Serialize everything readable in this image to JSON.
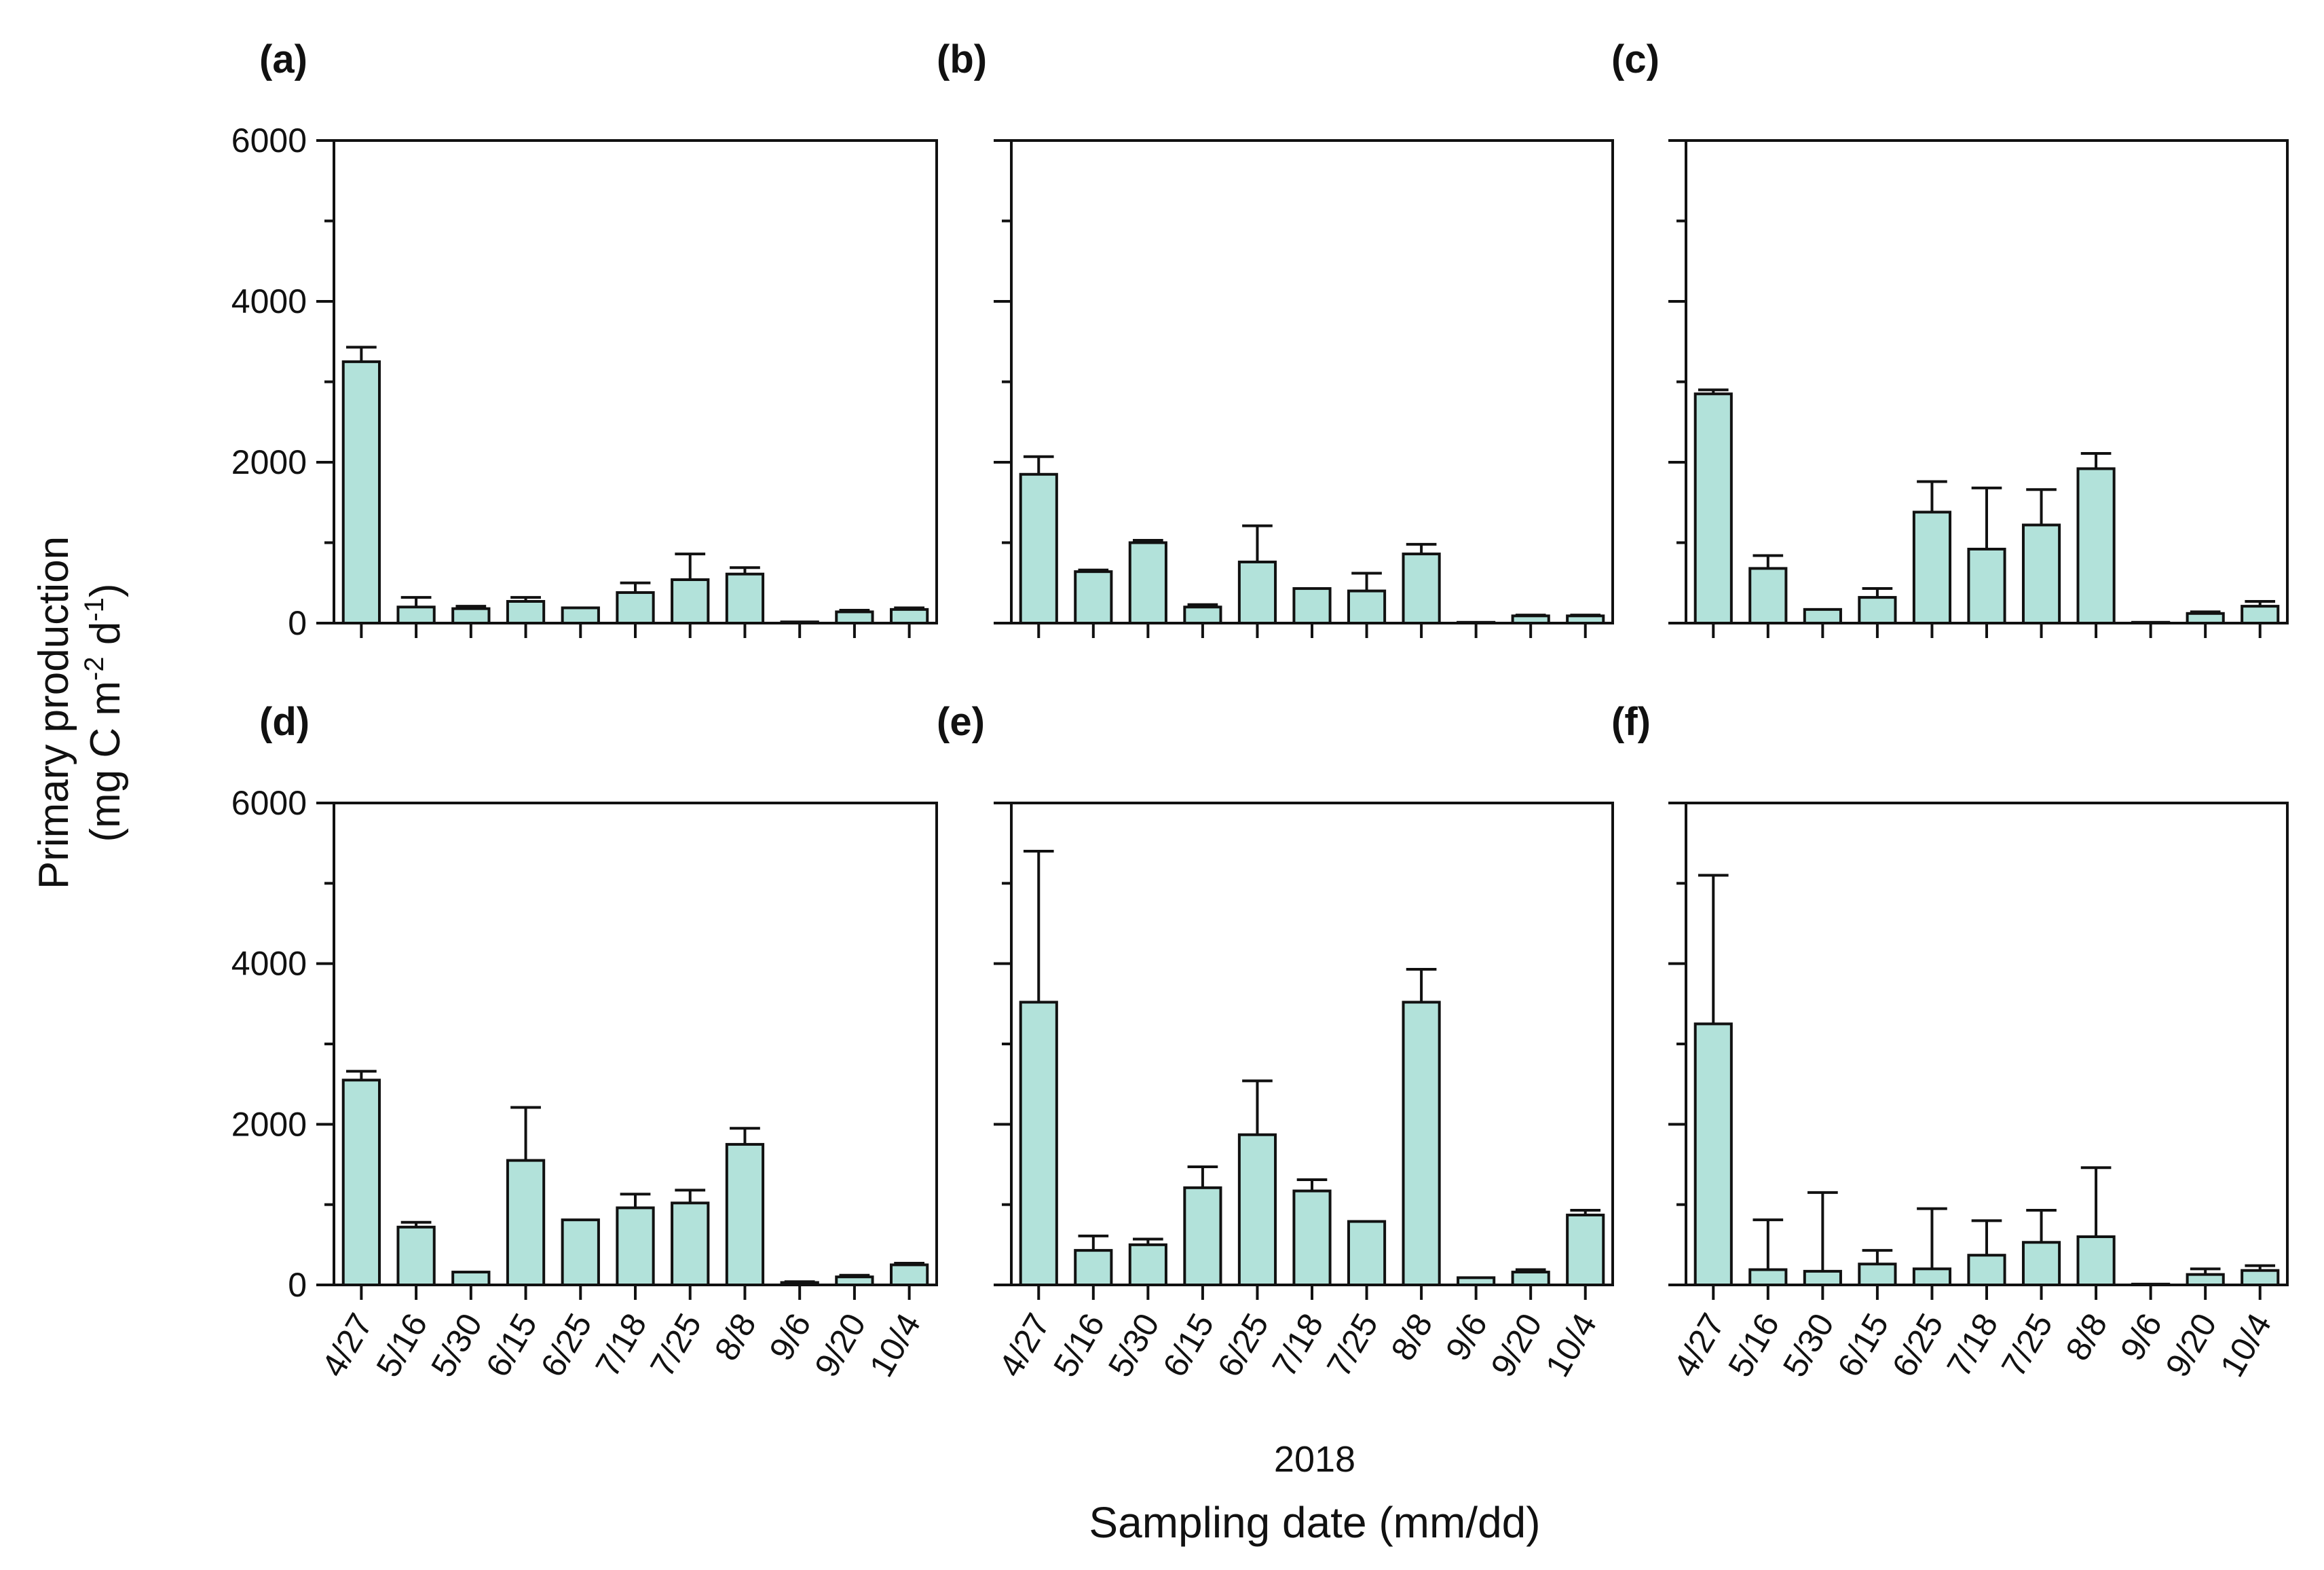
{
  "figure": {
    "y_label_line1": "Primary production",
    "y_label_line2_prefix": "(mg C m",
    "y_label_sup1": "-2",
    "y_label_mid": " d",
    "y_label_sup2": "-1",
    "y_label_suffix": ")",
    "x_year": "2018",
    "x_label": "Sampling date (mm/dd)",
    "bar_color": "#b2e2da"
  },
  "chart_data": [
    {
      "type": "bar",
      "panel": "(a)",
      "categories": [
        "4/27",
        "5/16",
        "5/30",
        "6/15",
        "6/25",
        "7/18",
        "7/25",
        "8/8",
        "9/6",
        "9/20",
        "10/4"
      ],
      "values": [
        3250,
        200,
        180,
        270,
        190,
        380,
        540,
        610,
        15,
        140,
        170
      ],
      "errors": [
        180,
        120,
        30,
        50,
        0,
        120,
        320,
        80,
        0,
        20,
        20
      ],
      "yticks": [
        0,
        2000,
        4000,
        6000
      ],
      "ylim": [
        0,
        6000
      ]
    },
    {
      "type": "bar",
      "panel": "(b)",
      "categories": [
        "4/27",
        "5/16",
        "5/30",
        "6/15",
        "6/25",
        "7/18",
        "7/25",
        "8/8",
        "9/6",
        "9/20",
        "10/4"
      ],
      "values": [
        1850,
        640,
        1000,
        200,
        760,
        430,
        400,
        860,
        10,
        90,
        90
      ],
      "errors": [
        220,
        20,
        30,
        30,
        450,
        0,
        220,
        120,
        0,
        10,
        10
      ],
      "yticks": [
        0,
        2000,
        4000,
        6000
      ],
      "ylim": [
        0,
        6000
      ]
    },
    {
      "type": "bar",
      "panel": "(c)",
      "categories": [
        "4/27",
        "5/16",
        "5/30",
        "6/15",
        "6/25",
        "7/18",
        "7/25",
        "8/8",
        "9/6",
        "9/20",
        "10/4"
      ],
      "values": [
        2850,
        680,
        170,
        320,
        1380,
        920,
        1220,
        1920,
        10,
        120,
        210
      ],
      "errors": [
        50,
        160,
        0,
        110,
        380,
        760,
        440,
        190,
        0,
        20,
        60
      ],
      "yticks": [
        0,
        2000,
        4000,
        6000
      ],
      "ylim": [
        0,
        6000
      ]
    },
    {
      "type": "bar",
      "panel": "(d)",
      "categories": [
        "4/27",
        "5/16",
        "5/30",
        "6/15",
        "6/25",
        "7/18",
        "7/25",
        "8/8",
        "9/6",
        "9/20",
        "10/4"
      ],
      "values": [
        2550,
        720,
        160,
        1550,
        810,
        960,
        1020,
        1750,
        30,
        100,
        250
      ],
      "errors": [
        110,
        60,
        0,
        660,
        0,
        170,
        160,
        200,
        10,
        20,
        20
      ],
      "yticks": [
        0,
        2000,
        4000,
        6000
      ],
      "ylim": [
        0,
        6000
      ]
    },
    {
      "type": "bar",
      "panel": "(e)",
      "categories": [
        "4/27",
        "5/16",
        "5/30",
        "6/15",
        "6/25",
        "7/18",
        "7/25",
        "8/8",
        "9/6",
        "9/20",
        "10/4"
      ],
      "values": [
        3520,
        430,
        500,
        1210,
        1870,
        1170,
        790,
        3520,
        90,
        160,
        870
      ],
      "errors": [
        1880,
        180,
        70,
        260,
        670,
        140,
        0,
        410,
        0,
        30,
        60
      ],
      "yticks": [
        0,
        2000,
        4000,
        6000
      ],
      "ylim": [
        0,
        6000
      ]
    },
    {
      "type": "bar",
      "panel": "(f)",
      "categories": [
        "4/27",
        "5/16",
        "5/30",
        "6/15",
        "6/25",
        "7/18",
        "7/25",
        "8/8",
        "9/6",
        "9/20",
        "10/4"
      ],
      "values": [
        3250,
        190,
        170,
        260,
        200,
        370,
        530,
        600,
        10,
        130,
        180
      ],
      "errors": [
        1850,
        620,
        980,
        170,
        750,
        430,
        400,
        860,
        0,
        70,
        60
      ],
      "yticks": [
        0,
        2000,
        4000,
        6000
      ],
      "ylim": [
        0,
        6000
      ]
    }
  ]
}
